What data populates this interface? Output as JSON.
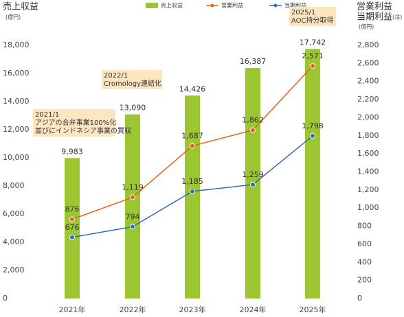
{
  "chart_data": {
    "type": "combo",
    "categories": [
      "2021年",
      "2022年",
      "2023年",
      "2024年",
      "2025年"
    ],
    "ylabel": "売上収益",
    "yunit": "(億円)",
    "y2label": [
      "営業利益",
      "当期利益"
    ],
    "y2note": "(注)",
    "y2unit": "(億円)",
    "ylim": [
      0,
      18000
    ],
    "yticks": [
      0,
      {
        "value": 2000,
        "label": "2,000"
      },
      {
        "value": 4000,
        "label": "4,000"
      },
      {
        "value": 6000,
        "label": "6,000"
      },
      {
        "value": 8000,
        "label": "8,000"
      },
      {
        "value": 10000,
        "label": "10,000"
      },
      {
        "value": 12000,
        "label": "12,000"
      },
      {
        "value": 14000,
        "label": "14,000"
      },
      {
        "value": 16000,
        "label": "16,000"
      },
      {
        "value": 18000,
        "label": "18,000"
      }
    ],
    "y2lim": [
      0,
      2800
    ],
    "y2ticks": [
      0,
      200,
      400,
      600,
      800,
      {
        "value": 1000,
        "label": "1,000"
      },
      {
        "value": 1200,
        "label": "1,200"
      },
      {
        "value": 1400,
        "label": "1,400"
      },
      {
        "value": 1600,
        "label": "1,600"
      },
      {
        "value": 1800,
        "label": "1,800"
      },
      {
        "value": 2000,
        "label": "2,000"
      },
      {
        "value": 2200,
        "label": "2,200"
      },
      {
        "value": 2400,
        "label": "2,400"
      },
      {
        "value": 2600,
        "label": "2,600"
      },
      {
        "value": 2800,
        "label": "2,800"
      }
    ],
    "grid": false,
    "series": [
      {
        "name": "売上収益",
        "type": "bar",
        "color": "#9bc531",
        "values": [
          9983,
          13090,
          14426,
          16387,
          17742
        ],
        "value_labels": [
          "9,983",
          "13,090",
          "14,426",
          "16,387",
          "17,742"
        ]
      },
      {
        "name": "営業利益",
        "type": "line",
        "axis": "y2",
        "color": "#e8601c",
        "values": [
          876,
          1119,
          1687,
          1862,
          2571
        ],
        "value_labels": [
          "876",
          "1,119",
          "1,687",
          "1,862",
          "2,571"
        ]
      },
      {
        "name": "当期利益",
        "type": "line",
        "axis": "y2",
        "color": "#2f6db5",
        "values": [
          676,
          794,
          1185,
          1259,
          1798
        ],
        "value_labels": [
          "676",
          "794",
          "1,185",
          "1,259",
          "1,798"
        ]
      }
    ],
    "annotations": [
      [
        "2021/1",
        "アジアの合弁事業100%化",
        "並びにインドネシア事業の買収"
      ],
      [
        "2022/1",
        "Cromology連結化"
      ],
      [
        "2025/1",
        "AOC持分取得"
      ]
    ]
  }
}
